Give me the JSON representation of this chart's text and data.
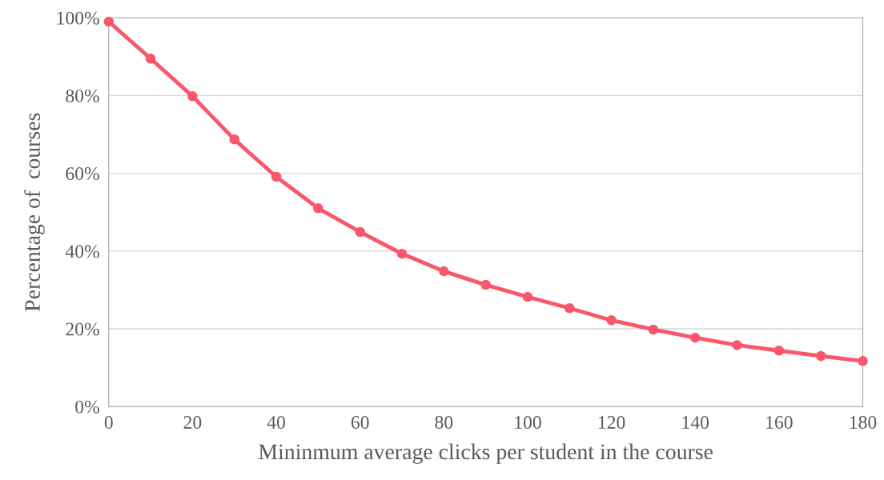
{
  "chart_data": {
    "type": "line",
    "xlabel": "Mininmum average clicks per student in the course",
    "ylabel": "Percentage of  courses",
    "x": [
      0,
      10,
      20,
      30,
      40,
      50,
      60,
      70,
      80,
      90,
      100,
      110,
      120,
      130,
      140,
      150,
      160,
      170,
      180
    ],
    "series": [
      {
        "color": "#f9576b",
        "values": [
          99,
          89.5,
          79.8,
          68.7,
          59.1,
          51.0,
          44.9,
          39.3,
          34.8,
          31.3,
          28.2,
          25.3,
          22.2,
          19.8,
          17.7,
          15.8,
          14.4,
          13.0,
          11.7
        ]
      }
    ],
    "xlim": [
      0,
      180
    ],
    "xticks": [
      0,
      20,
      40,
      60,
      80,
      100,
      120,
      140,
      160,
      180
    ],
    "ylim": [
      0,
      100
    ],
    "yticks": [
      {
        "value": 0,
        "label": "0%"
      },
      {
        "value": 20,
        "label": "20%"
      },
      {
        "value": 40,
        "label": "40%"
      },
      {
        "value": 60,
        "label": "60%"
      },
      {
        "value": 80,
        "label": "80%"
      },
      {
        "value": 100,
        "label": "100%"
      }
    ],
    "grid": "y",
    "marker": "circle",
    "line_style": "solid"
  }
}
